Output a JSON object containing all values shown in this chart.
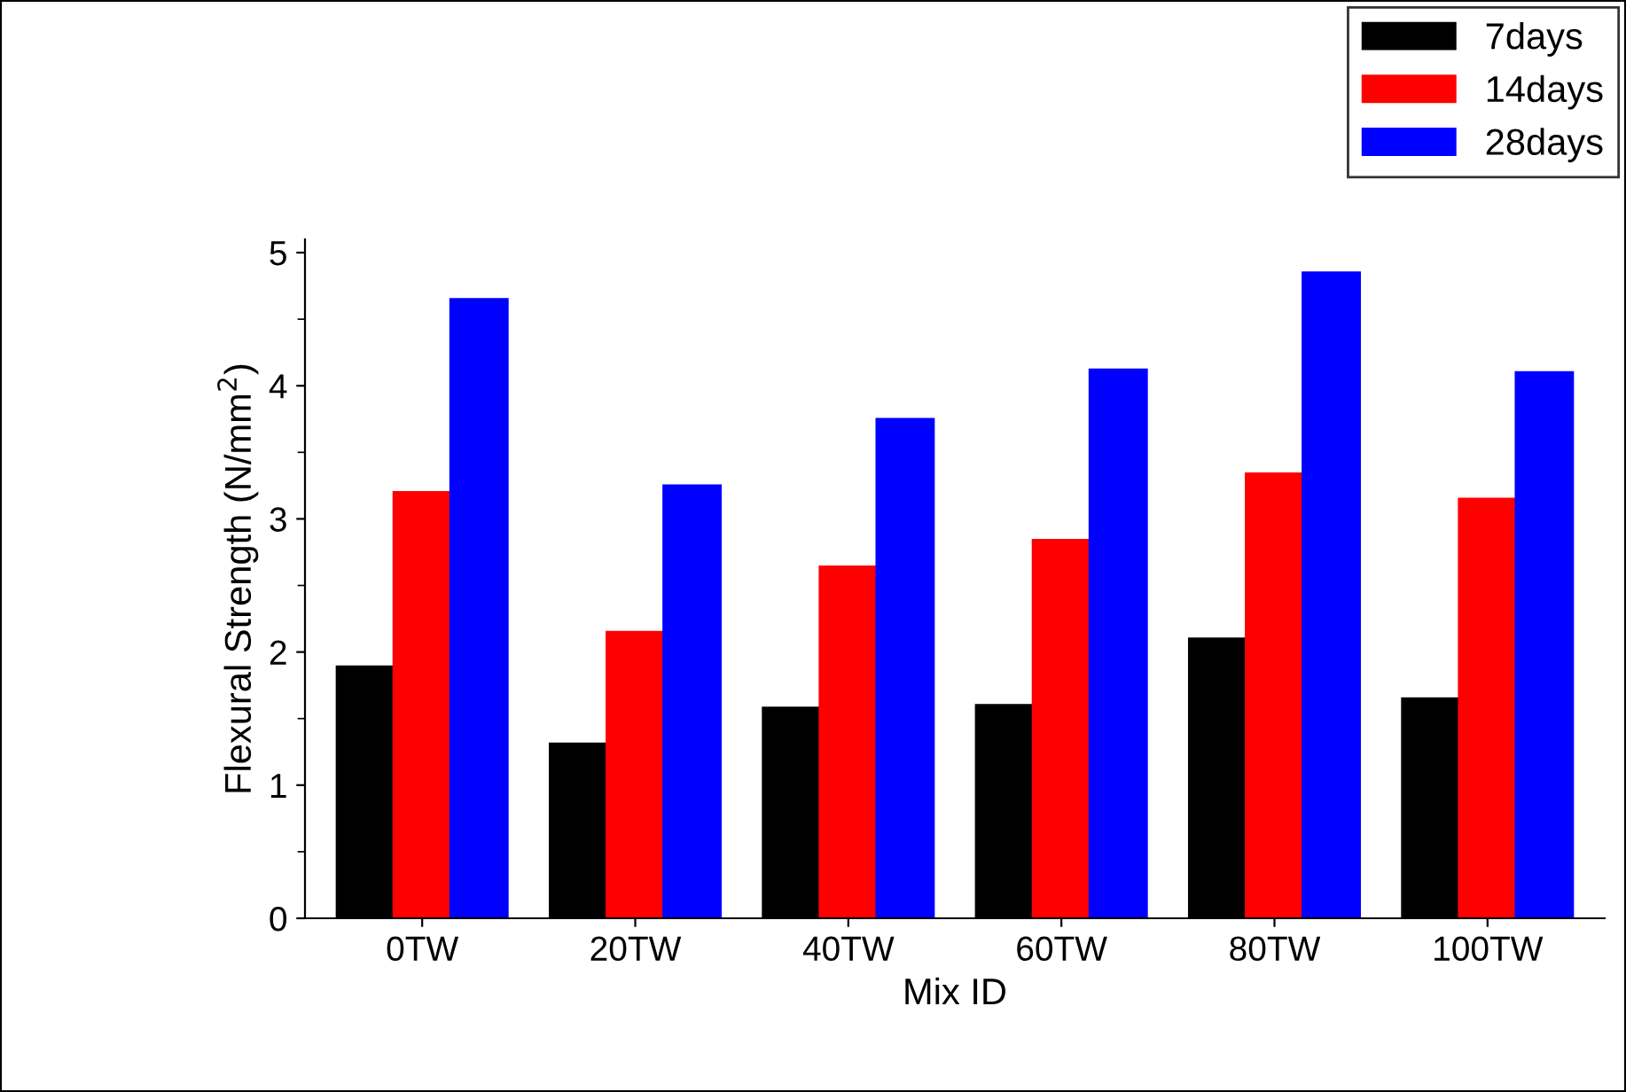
{
  "chart_data": {
    "type": "bar",
    "xlabel": "Mix ID",
    "ylabel": "Flexural Strength (N/mm$^{2}$)",
    "categories": [
      "0TW",
      "20TW",
      "40TW",
      "60TW",
      "80TW",
      "100TW"
    ],
    "series": [
      {
        "name": "7days",
        "color": "#000000",
        "values": [
          1.89,
          1.31,
          1.58,
          1.6,
          2.1,
          1.65
        ]
      },
      {
        "name": "14days",
        "color": "#ff0000",
        "values": [
          3.2,
          2.15,
          2.64,
          2.84,
          3.34,
          3.15
        ]
      },
      {
        "name": "28days",
        "color": "#0000ff",
        "values": [
          4.65,
          3.25,
          3.75,
          4.12,
          4.85,
          4.1
        ]
      }
    ],
    "ylim": [
      0,
      5.1
    ],
    "yticks": [
      0,
      1,
      2,
      3,
      4,
      5
    ],
    "grid": false,
    "legend": "top right"
  }
}
